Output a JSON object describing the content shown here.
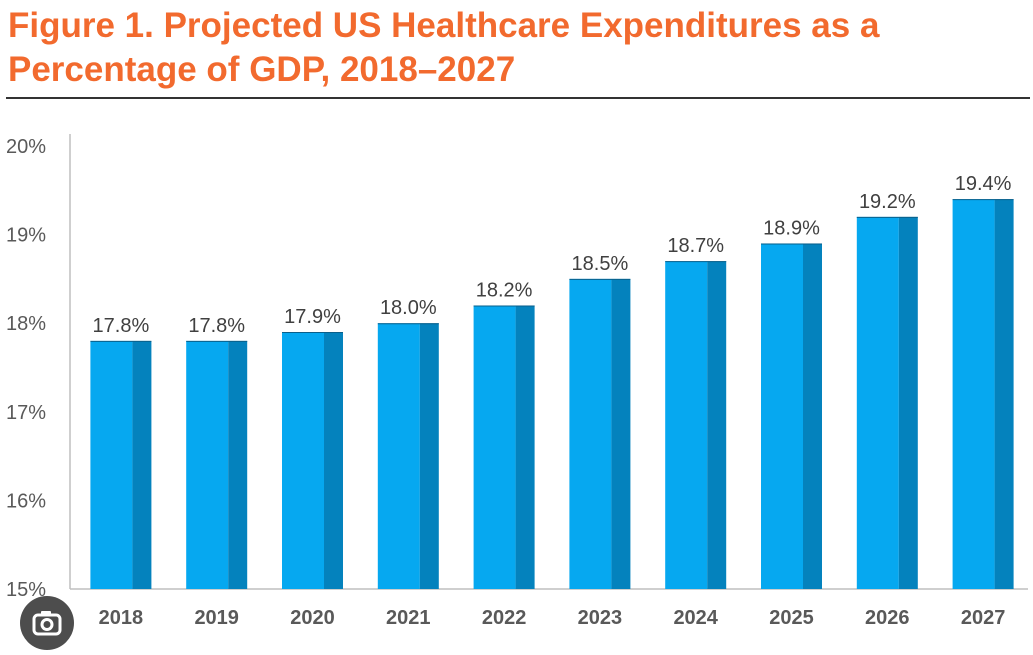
{
  "title": "Figure 1. Projected US Healthcare Expenditures as a Percentage of GDP, 2018–2027",
  "colors": {
    "title": "#f26a2e",
    "bar_front": "#06a8f0",
    "bar_side": "#0482bd",
    "axis": "#bfbfbf",
    "tick_text": "#595959",
    "label_text": "#404040"
  },
  "overlay": {
    "icon": "camera-icon"
  },
  "chart_data": {
    "type": "bar",
    "title": "Figure 1. Projected US Healthcare Expenditures as a Percentage of GDP, 2018–2027",
    "xlabel": "",
    "ylabel": "",
    "categories": [
      "2018",
      "2019",
      "2020",
      "2021",
      "2022",
      "2023",
      "2024",
      "2025",
      "2026",
      "2027"
    ],
    "values": [
      17.8,
      17.8,
      17.9,
      18.0,
      18.2,
      18.5,
      18.7,
      18.9,
      19.2,
      19.4
    ],
    "value_labels": [
      "17.8%",
      "17.8%",
      "17.9%",
      "18.0%",
      "18.2%",
      "18.5%",
      "18.7%",
      "18.9%",
      "19.2%",
      "19.4%"
    ],
    "ylim": [
      15,
      20
    ],
    "yticks": [
      15,
      16,
      17,
      18,
      19,
      20
    ],
    "ytick_labels": [
      "15%",
      "16%",
      "17%",
      "18%",
      "19%",
      "20%"
    ],
    "grid": false,
    "legend": "none"
  }
}
